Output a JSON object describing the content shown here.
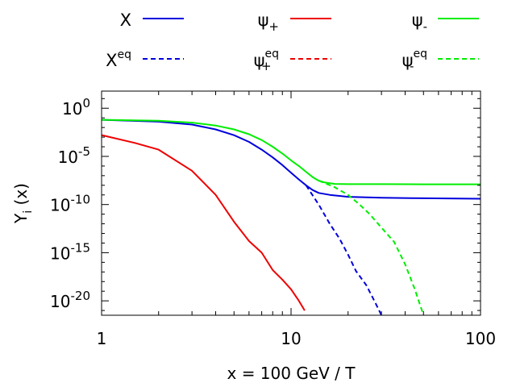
{
  "chart_data": {
    "type": "line",
    "title": "",
    "xlabel": "x = 100 GeV / T",
    "ylabel": {
      "base": "Y",
      "sub": "i",
      "rest": " (x)"
    },
    "x_scale": "log",
    "y_scale": "log",
    "xlim": [
      1,
      100
    ],
    "ylim": [
      3.2e-22,
      60
    ],
    "grid": false,
    "legend_position": "top, outside plot",
    "x_ticks": [
      {
        "value": 1,
        "label": "1"
      },
      {
        "value": 10,
        "label": "10"
      },
      {
        "value": 100,
        "label": "100"
      }
    ],
    "y_ticks": [
      {
        "value": 1,
        "label": "10",
        "exp": "0"
      },
      {
        "value": 1e-05,
        "label": "10",
        "exp": "-5"
      },
      {
        "value": 1e-10,
        "label": "10",
        "exp": "-10"
      },
      {
        "value": 1e-15,
        "label": "10",
        "exp": "-15"
      },
      {
        "value": 1e-20,
        "label": "10",
        "exp": "-20"
      }
    ],
    "series": [
      {
        "name": "X",
        "name_base": "X",
        "name_sub": "",
        "name_sup": "",
        "color": "#0000dd",
        "dash": "solid",
        "x": [
          1,
          2,
          3,
          4,
          5,
          6,
          7,
          8,
          9,
          10,
          11,
          12,
          13,
          14,
          16,
          20,
          30,
          50,
          100
        ],
        "y": [
          0.063,
          0.04,
          0.02,
          0.0063,
          0.00158,
          0.00032,
          5e-05,
          7.9e-06,
          1.26e-06,
          2e-07,
          4e-08,
          1e-08,
          3.2e-09,
          1.6e-09,
          1e-09,
          6.3e-10,
          5e-10,
          4.5e-10,
          4e-10
        ]
      },
      {
        "name": "ψ+",
        "name_base": "ψ",
        "name_sub": "+",
        "name_sup": "",
        "color": "#ee0000",
        "dash": "solid",
        "x": [
          1,
          1.5,
          2,
          3,
          4,
          5,
          6,
          7,
          8,
          9,
          10,
          11,
          11.8
        ],
        "y": [
          0.0016,
          0.00025,
          5e-05,
          3.2e-07,
          1e-09,
          1.6e-12,
          1.6e-14,
          1e-15,
          1.6e-17,
          1.6e-18,
          1.6e-19,
          1e-20,
          1e-21
        ]
      },
      {
        "name": "ψ-",
        "name_base": "ψ",
        "name_sub": "-",
        "name_sup": "",
        "color": "#00ee00",
        "dash": "solid",
        "x": [
          1,
          2,
          3,
          4,
          5,
          6,
          7,
          8,
          9,
          10,
          11,
          12,
          13,
          14,
          15,
          17,
          20,
          30,
          50,
          100
        ],
        "y": [
          0.063,
          0.05,
          0.032,
          0.016,
          0.0063,
          0.002,
          0.0005,
          0.0001,
          2e-05,
          3.9e-06,
          1e-06,
          2.5e-07,
          7e-08,
          3e-08,
          2e-08,
          1.4e-08,
          1.3e-08,
          1.3e-08,
          1.26e-08,
          1.26e-08
        ]
      },
      {
        "name": "Xeq",
        "name_base": "X",
        "name_sub": "",
        "name_sup": "eq",
        "color": "#0000dd",
        "dash": "dashed",
        "x": [
          12,
          14,
          16,
          18,
          20,
          22,
          25,
          28,
          30
        ],
        "y": [
          1e-08,
          1e-10,
          1e-12,
          3e-14,
          6.3e-16,
          1.26e-17,
          4e-19,
          5e-21,
          3.2e-22
        ]
      },
      {
        "name": "ψ+eq",
        "name_base": "ψ",
        "name_sub": "+",
        "name_sup": "eq",
        "color": "#ee0000",
        "dash": "dashed",
        "x": [],
        "y": []
      },
      {
        "name": "ψ-eq",
        "name_base": "ψ",
        "name_sub": "-",
        "name_sup": "eq",
        "color": "#00ee00",
        "dash": "dashed",
        "x": [
          14,
          17,
          20,
          23,
          26,
          30,
          35,
          40,
          45,
          50
        ],
        "y": [
          3e-08,
          6.3e-09,
          1e-09,
          1e-10,
          1e-11,
          4e-13,
          1.3e-14,
          6.3e-17,
          1.6e-19,
          3.2e-22
        ]
      }
    ]
  }
}
